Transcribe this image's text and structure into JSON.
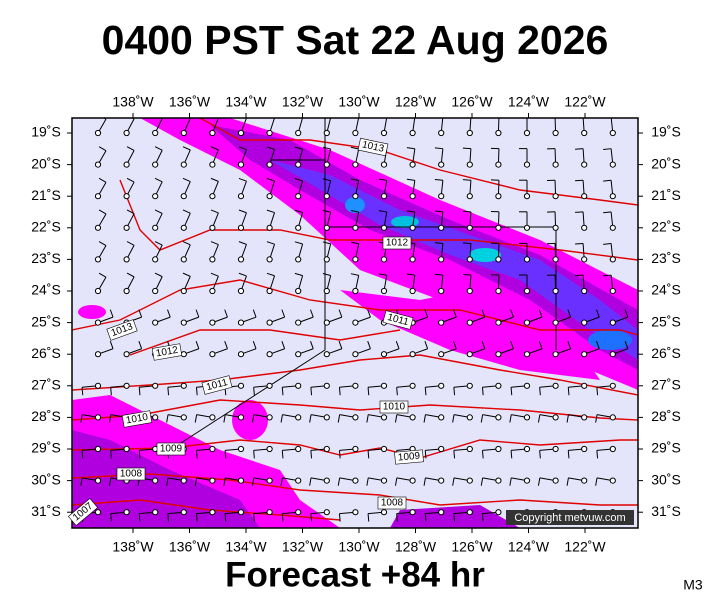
{
  "title": "0400 PST Sat 22 Aug 2026",
  "lon_labels": [
    "138˚W",
    "136˚W",
    "134˚W",
    "132˚W",
    "130˚W",
    "128˚W",
    "126˚W",
    "124˚W",
    "122˚W"
  ],
  "lat_labels": [
    "19˚S",
    "20˚S",
    "21˚S",
    "22˚S",
    "23˚S",
    "24˚S",
    "25˚S",
    "26˚S",
    "27˚S",
    "28˚S",
    "29˚S",
    "30˚S",
    "31˚S"
  ],
  "isobar_labels": [
    "1013",
    "1012",
    "1013",
    "1012",
    "1011",
    "1011",
    "1010",
    "1010",
    "1009",
    "1009",
    "1008",
    "1008",
    "1007"
  ],
  "copyright": "Copyright metvuw.com",
  "footer": "Forecast +84 hr",
  "code": "M3"
}
